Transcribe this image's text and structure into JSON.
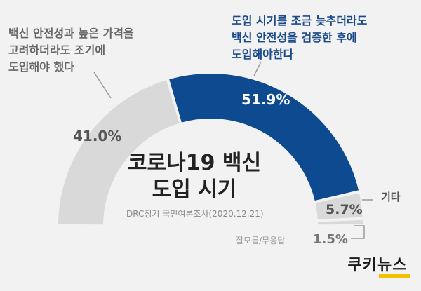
{
  "chart_data": {
    "type": "pie",
    "style": "half-donut",
    "title_lines": [
      "코로나19 백신",
      "도입 시기"
    ],
    "source": "DRC정기 국민여론조사(2020.12.21)",
    "slices": [
      {
        "key": "now",
        "label_lines": [
          "백신 안전성과 높은 가격을",
          "고려하더라도 조기에",
          "도입해야 했다"
        ],
        "value": 41.0,
        "display": "41.0%",
        "color": "#d9d9d9"
      },
      {
        "key": "yes",
        "label_lines": [
          "도입 시기를 조금 늦추더라도",
          "백신 안전성을 검증한 후에",
          "도입해야한다"
        ],
        "value": 51.9,
        "display": "51.9%",
        "color": "#0d4a8f"
      },
      {
        "key": "etc",
        "label": "기타",
        "value": 5.7,
        "display": "5.7%",
        "color": "#d9d9d9"
      },
      {
        "key": "dk",
        "label": "잘모름/무응답",
        "value": 1.5,
        "display": "1.5%",
        "color": "#d9d9d9"
      }
    ]
  },
  "brand": {
    "logo_text": "쿠키뉴스",
    "accent": "#f2c200"
  }
}
